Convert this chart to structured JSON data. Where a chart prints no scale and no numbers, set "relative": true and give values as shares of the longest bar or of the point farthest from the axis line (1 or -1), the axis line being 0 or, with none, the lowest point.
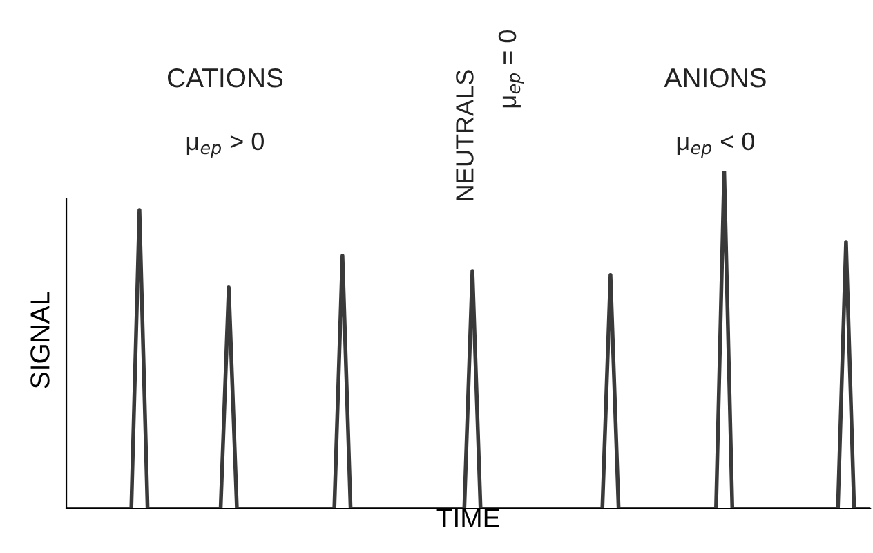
{
  "chart_data": {
    "type": "line",
    "relative": true,
    "xlabel": "TIME",
    "ylabel": "SIGNAL",
    "annotations": [
      "CATIONS",
      "μ$_{ep}$ > 0",
      "NEUTRALS",
      "μ$_{ep}$ = 0",
      "ANIONS",
      "μ$_{ep}$ < 0"
    ],
    "categories": [
      null,
      null,
      null,
      null,
      null,
      null,
      null,
      null,
      null,
      null,
      null,
      null,
      null,
      null,
      null,
      null,
      null,
      null,
      null,
      null,
      null,
      null,
      null,
      null,
      null,
      null,
      null,
      null,
      null,
      null,
      null,
      null,
      null,
      null,
      null,
      null,
      null,
      null,
      null,
      null,
      null,
      null,
      null,
      null,
      null,
      null,
      null,
      null,
      null,
      null,
      null,
      null,
      null,
      null,
      null,
      null,
      null,
      null,
      null,
      null,
      null,
      null,
      null,
      null,
      null,
      null,
      null,
      null,
      null,
      null,
      null,
      null,
      null,
      null,
      null,
      null,
      null,
      null,
      null,
      null,
      null,
      null,
      null,
      null,
      null,
      null,
      null,
      null,
      null,
      null,
      null,
      null,
      null,
      null,
      null,
      null,
      null,
      null,
      null,
      null
    ],
    "series": [
      {
        "color": "#3a3a3a",
        "values": [
          0,
          0,
          0,
          0,
          0,
          0,
          0,
          0,
          0,
          0.885,
          0,
          0,
          0,
          0,
          0,
          0,
          0,
          0,
          0,
          0,
          0.656,
          0,
          0,
          0,
          0,
          0,
          0,
          0,
          0,
          0,
          0,
          0,
          0,
          0,
          0.75,
          0,
          0,
          0,
          0,
          0,
          0,
          0,
          0,
          0,
          0,
          0,
          0,
          0,
          0,
          0,
          0.705,
          0,
          0,
          0,
          0,
          0,
          0,
          0,
          0,
          0,
          0,
          0,
          0,
          0,
          0,
          0,
          0,
          0.693,
          0,
          0,
          0,
          0,
          0,
          0,
          0,
          0,
          0,
          0,
          0,
          0,
          0,
          1,
          0,
          0,
          0,
          0,
          0,
          0,
          0,
          0,
          0,
          0,
          0,
          0,
          0,
          0,
          0.791,
          0,
          0,
          0
        ]
      }
    ],
    "grid": false,
    "legend": false,
    "marker": "none",
    "line_style": "solid"
  }
}
